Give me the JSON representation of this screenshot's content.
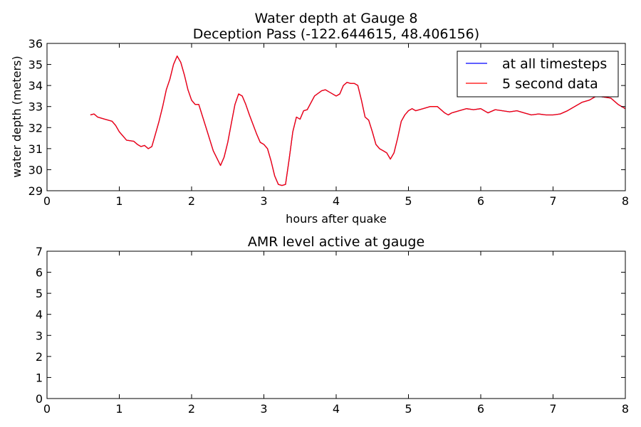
{
  "chart_data": [
    {
      "type": "line",
      "title": "Water depth at Gauge 8",
      "subtitle": "Deception Pass  (-122.644615, 48.406156)",
      "xlabel": "hours after quake",
      "ylabel": "water depth (meters)",
      "xlim": [
        0,
        8
      ],
      "ylim": [
        29,
        36
      ],
      "x_ticks": [
        "0",
        "1",
        "2",
        "3",
        "4",
        "5",
        "6",
        "7",
        "8"
      ],
      "y_ticks": [
        "29",
        "30",
        "31",
        "32",
        "33",
        "34",
        "35",
        "36"
      ],
      "grid": false,
      "legend_position": "top-right",
      "series": [
        {
          "name": "at all timesteps",
          "color": "#0000ff",
          "x": [
            0.6,
            0.65,
            0.7,
            0.8,
            0.9,
            0.95,
            1.0,
            1.05,
            1.1,
            1.2,
            1.25,
            1.3,
            1.35,
            1.4,
            1.45,
            1.5,
            1.55,
            1.6,
            1.65,
            1.7,
            1.75,
            1.8,
            1.85,
            1.9,
            1.95,
            2.0,
            2.05,
            2.1,
            2.2,
            2.3,
            2.4,
            2.45,
            2.5,
            2.55,
            2.6,
            2.65,
            2.7,
            2.75,
            2.8,
            2.9,
            2.95,
            3.0,
            3.05,
            3.1,
            3.15,
            3.2,
            3.25,
            3.3,
            3.35,
            3.4,
            3.45,
            3.5,
            3.55,
            3.6,
            3.7,
            3.8,
            3.85,
            3.9,
            4.0,
            4.05,
            4.1,
            4.15,
            4.2,
            4.25,
            4.3,
            4.35,
            4.4,
            4.45,
            4.5,
            4.55,
            4.6,
            4.65,
            4.7,
            4.75,
            4.8,
            4.85,
            4.9,
            4.95,
            5.0,
            5.05,
            5.1,
            5.2,
            5.3,
            5.4,
            5.5,
            5.55,
            5.6,
            5.7,
            5.8,
            5.9,
            6.0,
            6.1,
            6.2,
            6.3,
            6.4,
            6.5,
            6.6,
            6.7,
            6.8,
            6.9,
            7.0,
            7.1,
            7.2,
            7.3,
            7.4,
            7.5,
            7.6,
            7.7,
            7.8,
            7.9,
            8.0
          ],
          "y": [
            32.6,
            32.65,
            32.5,
            32.4,
            32.3,
            32.1,
            31.8,
            31.6,
            31.4,
            31.35,
            31.2,
            31.1,
            31.15,
            31.0,
            31.1,
            31.7,
            32.3,
            33.0,
            33.8,
            34.3,
            35.0,
            35.4,
            35.1,
            34.5,
            33.8,
            33.3,
            33.1,
            33.1,
            32.0,
            30.9,
            30.2,
            30.6,
            31.3,
            32.2,
            33.1,
            33.6,
            33.5,
            33.1,
            32.6,
            31.7,
            31.3,
            31.2,
            31.0,
            30.4,
            29.7,
            29.3,
            29.25,
            29.3,
            30.5,
            31.8,
            32.5,
            32.4,
            32.8,
            32.85,
            33.5,
            33.75,
            33.8,
            33.7,
            33.5,
            33.6,
            34.0,
            34.15,
            34.1,
            34.1,
            34.0,
            33.3,
            32.5,
            32.35,
            31.8,
            31.2,
            31.0,
            30.9,
            30.8,
            30.5,
            30.8,
            31.5,
            32.3,
            32.6,
            32.8,
            32.9,
            32.8,
            32.9,
            33.0,
            33.0,
            32.7,
            32.6,
            32.7,
            32.8,
            32.9,
            32.85,
            32.9,
            32.7,
            32.85,
            32.8,
            32.75,
            32.8,
            32.7,
            32.6,
            32.65,
            32.6,
            32.6,
            32.65,
            32.8,
            33.0,
            33.2,
            33.3,
            33.5,
            33.45,
            33.4,
            33.1,
            32.9
          ]
        },
        {
          "name": "5 second data",
          "color": "#ff0000",
          "x": [
            0.6,
            0.65,
            0.7,
            0.8,
            0.9,
            0.95,
            1.0,
            1.05,
            1.1,
            1.2,
            1.25,
            1.3,
            1.35,
            1.4,
            1.45,
            1.5,
            1.55,
            1.6,
            1.65,
            1.7,
            1.75,
            1.8,
            1.85,
            1.9,
            1.95,
            2.0,
            2.05,
            2.1,
            2.2,
            2.3,
            2.4,
            2.45,
            2.5,
            2.55,
            2.6,
            2.65,
            2.7,
            2.75,
            2.8,
            2.9,
            2.95,
            3.0,
            3.05,
            3.1,
            3.15,
            3.2,
            3.25,
            3.3,
            3.35,
            3.4,
            3.45,
            3.5,
            3.55,
            3.6,
            3.7,
            3.8,
            3.85,
            3.9,
            4.0,
            4.05,
            4.1,
            4.15,
            4.2,
            4.25,
            4.3,
            4.35,
            4.4,
            4.45,
            4.5,
            4.55,
            4.6,
            4.65,
            4.7,
            4.75,
            4.8,
            4.85,
            4.9,
            4.95,
            5.0,
            5.05,
            5.1,
            5.2,
            5.3,
            5.4,
            5.5,
            5.55,
            5.6,
            5.7,
            5.8,
            5.9,
            6.0,
            6.1,
            6.2,
            6.3,
            6.4,
            6.5,
            6.6,
            6.7,
            6.8,
            6.9,
            7.0,
            7.1,
            7.2,
            7.3,
            7.4,
            7.5,
            7.6,
            7.7,
            7.8,
            7.9,
            8.0
          ],
          "y": [
            32.6,
            32.65,
            32.5,
            32.4,
            32.3,
            32.1,
            31.8,
            31.6,
            31.4,
            31.35,
            31.2,
            31.1,
            31.15,
            31.0,
            31.1,
            31.7,
            32.3,
            33.0,
            33.8,
            34.3,
            35.0,
            35.4,
            35.1,
            34.5,
            33.8,
            33.3,
            33.1,
            33.1,
            32.0,
            30.9,
            30.2,
            30.6,
            31.3,
            32.2,
            33.1,
            33.6,
            33.5,
            33.1,
            32.6,
            31.7,
            31.3,
            31.2,
            31.0,
            30.4,
            29.7,
            29.3,
            29.25,
            29.3,
            30.5,
            31.8,
            32.5,
            32.4,
            32.8,
            32.85,
            33.5,
            33.75,
            33.8,
            33.7,
            33.5,
            33.6,
            34.0,
            34.15,
            34.1,
            34.1,
            34.0,
            33.3,
            32.5,
            32.35,
            31.8,
            31.2,
            31.0,
            30.9,
            30.8,
            30.5,
            30.8,
            31.5,
            32.3,
            32.6,
            32.8,
            32.9,
            32.8,
            32.9,
            33.0,
            33.0,
            32.7,
            32.6,
            32.7,
            32.8,
            32.9,
            32.85,
            32.9,
            32.7,
            32.85,
            32.8,
            32.75,
            32.8,
            32.7,
            32.6,
            32.65,
            32.6,
            32.6,
            32.65,
            32.8,
            33.0,
            33.2,
            33.3,
            33.5,
            33.45,
            33.4,
            33.1,
            32.9
          ]
        }
      ]
    },
    {
      "type": "line",
      "title": "AMR level active at gauge",
      "xlabel": "",
      "ylabel": "",
      "xlim": [
        0,
        8
      ],
      "ylim": [
        0,
        7
      ],
      "x_ticks": [
        "0",
        "1",
        "2",
        "3",
        "4",
        "5",
        "6",
        "7",
        "8"
      ],
      "y_ticks": [
        "0",
        "1",
        "2",
        "3",
        "4",
        "5",
        "6",
        "7"
      ],
      "grid": false,
      "series": []
    }
  ]
}
